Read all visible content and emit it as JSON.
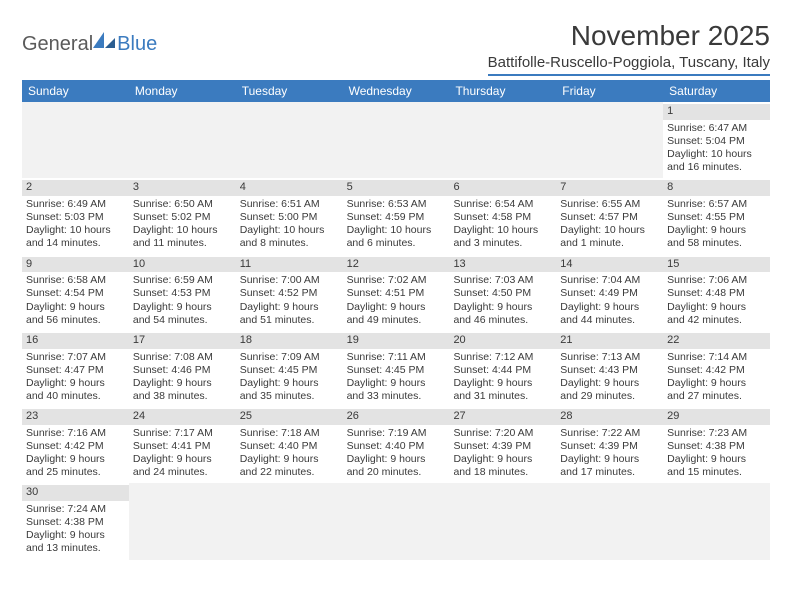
{
  "logo": {
    "general": "General",
    "blue": "Blue"
  },
  "title": "November 2025",
  "location": "Battifolle-Ruscello-Poggiola, Tuscany, Italy",
  "colors": {
    "header_bg": "#3b7bbf",
    "header_text": "#ffffff",
    "daynum_bg": "#e3e3e3",
    "empty_bg": "#f2f2f2",
    "text": "#3a3a3a"
  },
  "dayNames": [
    "Sunday",
    "Monday",
    "Tuesday",
    "Wednesday",
    "Thursday",
    "Friday",
    "Saturday"
  ],
  "weeks": [
    [
      null,
      null,
      null,
      null,
      null,
      null,
      {
        "n": "1",
        "sr": "6:47 AM",
        "ss": "5:04 PM",
        "dl1": "Daylight: 10 hours",
        "dl2": "and 16 minutes."
      }
    ],
    [
      {
        "n": "2",
        "sr": "6:49 AM",
        "ss": "5:03 PM",
        "dl1": "Daylight: 10 hours",
        "dl2": "and 14 minutes."
      },
      {
        "n": "3",
        "sr": "6:50 AM",
        "ss": "5:02 PM",
        "dl1": "Daylight: 10 hours",
        "dl2": "and 11 minutes."
      },
      {
        "n": "4",
        "sr": "6:51 AM",
        "ss": "5:00 PM",
        "dl1": "Daylight: 10 hours",
        "dl2": "and 8 minutes."
      },
      {
        "n": "5",
        "sr": "6:53 AM",
        "ss": "4:59 PM",
        "dl1": "Daylight: 10 hours",
        "dl2": "and 6 minutes."
      },
      {
        "n": "6",
        "sr": "6:54 AM",
        "ss": "4:58 PM",
        "dl1": "Daylight: 10 hours",
        "dl2": "and 3 minutes."
      },
      {
        "n": "7",
        "sr": "6:55 AM",
        "ss": "4:57 PM",
        "dl1": "Daylight: 10 hours",
        "dl2": "and 1 minute."
      },
      {
        "n": "8",
        "sr": "6:57 AM",
        "ss": "4:55 PM",
        "dl1": "Daylight: 9 hours",
        "dl2": "and 58 minutes."
      }
    ],
    [
      {
        "n": "9",
        "sr": "6:58 AM",
        "ss": "4:54 PM",
        "dl1": "Daylight: 9 hours",
        "dl2": "and 56 minutes."
      },
      {
        "n": "10",
        "sr": "6:59 AM",
        "ss": "4:53 PM",
        "dl1": "Daylight: 9 hours",
        "dl2": "and 54 minutes."
      },
      {
        "n": "11",
        "sr": "7:00 AM",
        "ss": "4:52 PM",
        "dl1": "Daylight: 9 hours",
        "dl2": "and 51 minutes."
      },
      {
        "n": "12",
        "sr": "7:02 AM",
        "ss": "4:51 PM",
        "dl1": "Daylight: 9 hours",
        "dl2": "and 49 minutes."
      },
      {
        "n": "13",
        "sr": "7:03 AM",
        "ss": "4:50 PM",
        "dl1": "Daylight: 9 hours",
        "dl2": "and 46 minutes."
      },
      {
        "n": "14",
        "sr": "7:04 AM",
        "ss": "4:49 PM",
        "dl1": "Daylight: 9 hours",
        "dl2": "and 44 minutes."
      },
      {
        "n": "15",
        "sr": "7:06 AM",
        "ss": "4:48 PM",
        "dl1": "Daylight: 9 hours",
        "dl2": "and 42 minutes."
      }
    ],
    [
      {
        "n": "16",
        "sr": "7:07 AM",
        "ss": "4:47 PM",
        "dl1": "Daylight: 9 hours",
        "dl2": "and 40 minutes."
      },
      {
        "n": "17",
        "sr": "7:08 AM",
        "ss": "4:46 PM",
        "dl1": "Daylight: 9 hours",
        "dl2": "and 38 minutes."
      },
      {
        "n": "18",
        "sr": "7:09 AM",
        "ss": "4:45 PM",
        "dl1": "Daylight: 9 hours",
        "dl2": "and 35 minutes."
      },
      {
        "n": "19",
        "sr": "7:11 AM",
        "ss": "4:45 PM",
        "dl1": "Daylight: 9 hours",
        "dl2": "and 33 minutes."
      },
      {
        "n": "20",
        "sr": "7:12 AM",
        "ss": "4:44 PM",
        "dl1": "Daylight: 9 hours",
        "dl2": "and 31 minutes."
      },
      {
        "n": "21",
        "sr": "7:13 AM",
        "ss": "4:43 PM",
        "dl1": "Daylight: 9 hours",
        "dl2": "and 29 minutes."
      },
      {
        "n": "22",
        "sr": "7:14 AM",
        "ss": "4:42 PM",
        "dl1": "Daylight: 9 hours",
        "dl2": "and 27 minutes."
      }
    ],
    [
      {
        "n": "23",
        "sr": "7:16 AM",
        "ss": "4:42 PM",
        "dl1": "Daylight: 9 hours",
        "dl2": "and 25 minutes."
      },
      {
        "n": "24",
        "sr": "7:17 AM",
        "ss": "4:41 PM",
        "dl1": "Daylight: 9 hours",
        "dl2": "and 24 minutes."
      },
      {
        "n": "25",
        "sr": "7:18 AM",
        "ss": "4:40 PM",
        "dl1": "Daylight: 9 hours",
        "dl2": "and 22 minutes."
      },
      {
        "n": "26",
        "sr": "7:19 AM",
        "ss": "4:40 PM",
        "dl1": "Daylight: 9 hours",
        "dl2": "and 20 minutes."
      },
      {
        "n": "27",
        "sr": "7:20 AM",
        "ss": "4:39 PM",
        "dl1": "Daylight: 9 hours",
        "dl2": "and 18 minutes."
      },
      {
        "n": "28",
        "sr": "7:22 AM",
        "ss": "4:39 PM",
        "dl1": "Daylight: 9 hours",
        "dl2": "and 17 minutes."
      },
      {
        "n": "29",
        "sr": "7:23 AM",
        "ss": "4:38 PM",
        "dl1": "Daylight: 9 hours",
        "dl2": "and 15 minutes."
      }
    ],
    [
      {
        "n": "30",
        "sr": "7:24 AM",
        "ss": "4:38 PM",
        "dl1": "Daylight: 9 hours",
        "dl2": "and 13 minutes."
      },
      null,
      null,
      null,
      null,
      null,
      null
    ]
  ],
  "labels": {
    "sunrise": "Sunrise:",
    "sunset": "Sunset:"
  }
}
